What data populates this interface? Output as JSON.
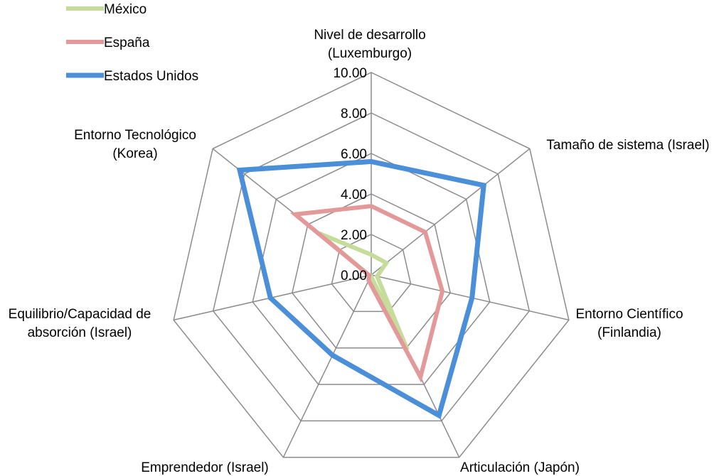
{
  "chart_data": {
    "type": "radar",
    "categories": [
      [
        "Nivel de desarrollo",
        "(Luxemburgo)"
      ],
      [
        "Tamaño de sistema (Israel)"
      ],
      [
        "Entorno Científico",
        "(Finlandia)"
      ],
      [
        "Articulación  (Japón)"
      ],
      [
        "Emprendedor (Israel)"
      ],
      [
        "Equilibrio/Capacidad  de",
        "absorción (Israel)"
      ],
      [
        "Entorno  Tecnológico",
        "(Korea)"
      ]
    ],
    "rlim": [
      0,
      10
    ],
    "ticks": [
      "0.00",
      "2.00",
      "4.00",
      "6.00",
      "8.00",
      "10.00"
    ],
    "grid": true,
    "legend_position": "top-left",
    "series": [
      {
        "name": "México",
        "color": "#c6dc9a",
        "values": [
          1.0,
          0.95,
          0.3,
          4.1,
          0.05,
          0.1,
          3.3
        ]
      },
      {
        "name": "España",
        "color": "#e3999a",
        "values": [
          3.4,
          3.4,
          3.6,
          5.6,
          0.3,
          0.1,
          4.8
        ]
      },
      {
        "name": "Estados Unidos",
        "color": "#4a8fd8",
        "values": [
          5.6,
          7.1,
          5.1,
          7.7,
          4.4,
          5.1,
          8.3
        ]
      }
    ]
  }
}
